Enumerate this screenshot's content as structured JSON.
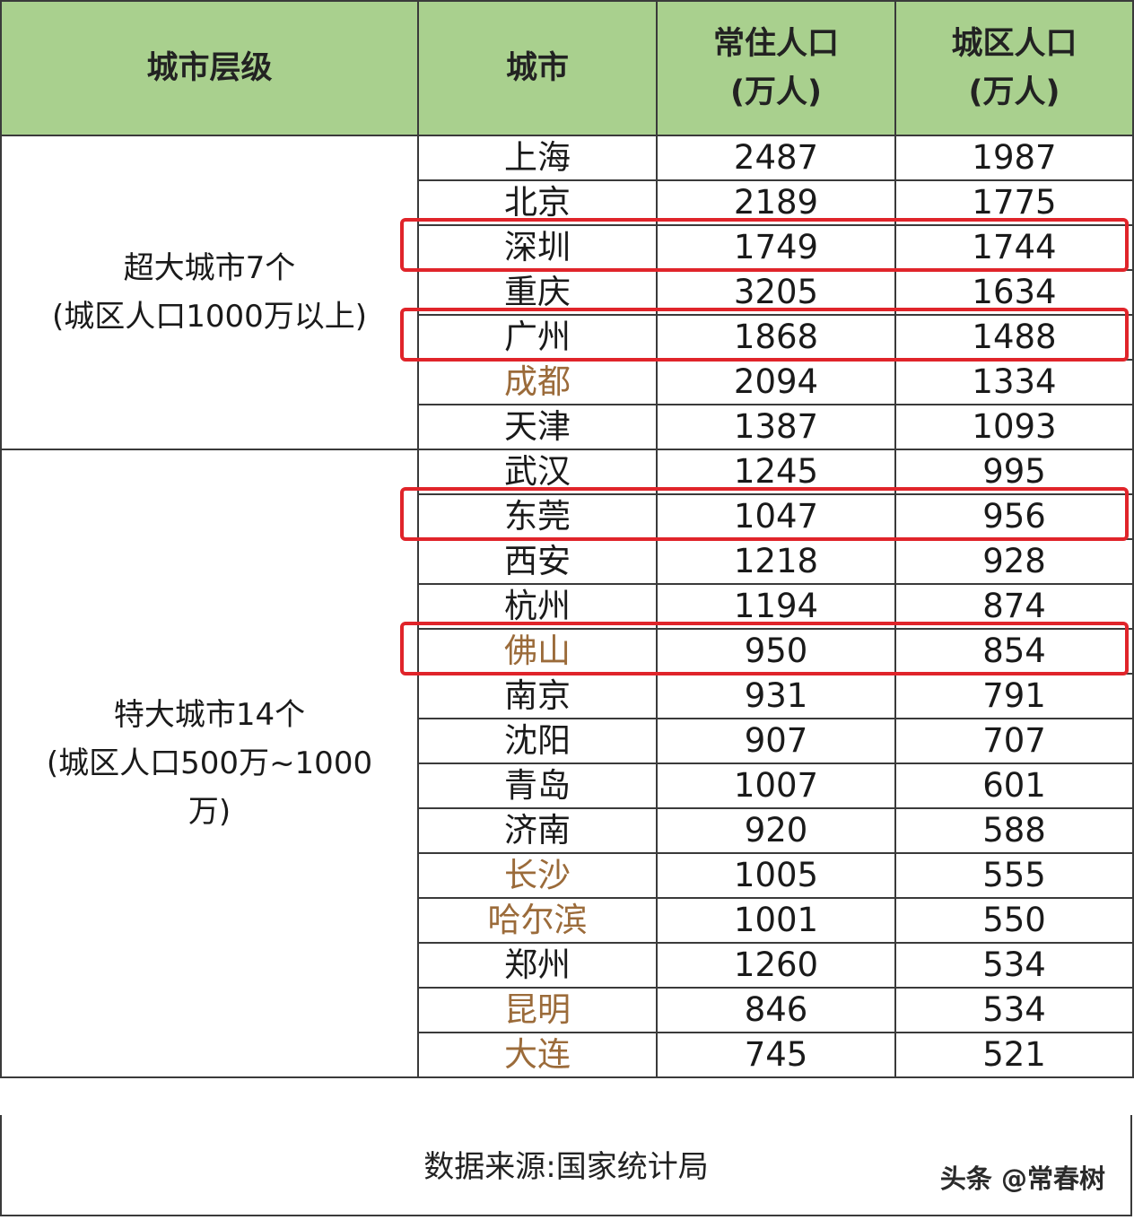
{
  "table": {
    "headers": {
      "tier": "城市层级",
      "city": "城市",
      "resident_line1": "常住人口",
      "resident_line2": "(万人)",
      "urban_line1": "城区人口",
      "urban_line2": "(万人)"
    },
    "groups": [
      {
        "tier_line1": "超大城市7个",
        "tier_line2": "(城区人口1000万以上)",
        "tier_line3": "",
        "rows": [
          {
            "city": "上海",
            "resident": "2487",
            "urban": "1987",
            "accent": false,
            "highlighted": false
          },
          {
            "city": "北京",
            "resident": "2189",
            "urban": "1775",
            "accent": false,
            "highlighted": false
          },
          {
            "city": "深圳",
            "resident": "1749",
            "urban": "1744",
            "accent": false,
            "highlighted": true
          },
          {
            "city": "重庆",
            "resident": "3205",
            "urban": "1634",
            "accent": false,
            "highlighted": false
          },
          {
            "city": "广州",
            "resident": "1868",
            "urban": "1488",
            "accent": false,
            "highlighted": true
          },
          {
            "city": "成都",
            "resident": "2094",
            "urban": "1334",
            "accent": true,
            "highlighted": false
          },
          {
            "city": "天津",
            "resident": "1387",
            "urban": "1093",
            "accent": false,
            "highlighted": false
          }
        ]
      },
      {
        "tier_line1": "特大城市14个",
        "tier_line2": "(城区人口500万~1000",
        "tier_line3": "万)",
        "rows": [
          {
            "city": "武汉",
            "resident": "1245",
            "urban": "995",
            "accent": false,
            "highlighted": false
          },
          {
            "city": "东莞",
            "resident": "1047",
            "urban": "956",
            "accent": false,
            "highlighted": true
          },
          {
            "city": "西安",
            "resident": "1218",
            "urban": "928",
            "accent": false,
            "highlighted": false
          },
          {
            "city": "杭州",
            "resident": "1194",
            "urban": "874",
            "accent": false,
            "highlighted": false
          },
          {
            "city": "佛山",
            "resident": "950",
            "urban": "854",
            "accent": true,
            "highlighted": true
          },
          {
            "city": "南京",
            "resident": "931",
            "urban": "791",
            "accent": false,
            "highlighted": false
          },
          {
            "city": "沈阳",
            "resident": "907",
            "urban": "707",
            "accent": false,
            "highlighted": false
          },
          {
            "city": "青岛",
            "resident": "1007",
            "urban": "601",
            "accent": false,
            "highlighted": false
          },
          {
            "city": "济南",
            "resident": "920",
            "urban": "588",
            "accent": false,
            "highlighted": false
          },
          {
            "city": "长沙",
            "resident": "1005",
            "urban": "555",
            "accent": true,
            "highlighted": false
          },
          {
            "city": "哈尔滨",
            "resident": "1001",
            "urban": "550",
            "accent": true,
            "highlighted": false
          },
          {
            "city": "郑州",
            "resident": "1260",
            "urban": "534",
            "accent": false,
            "highlighted": false
          },
          {
            "city": "昆明",
            "resident": "846",
            "urban": "534",
            "accent": true,
            "highlighted": false
          },
          {
            "city": "大连",
            "resident": "745",
            "urban": "521",
            "accent": true,
            "highlighted": false
          }
        ]
      }
    ]
  },
  "footer": {
    "source": "数据来源:国家统计局",
    "watermark": "头条 @常春树"
  },
  "colors": {
    "header_bg": "#a9d08e",
    "accent_city": "#9b6b3a",
    "highlight_border": "#e0242a"
  }
}
